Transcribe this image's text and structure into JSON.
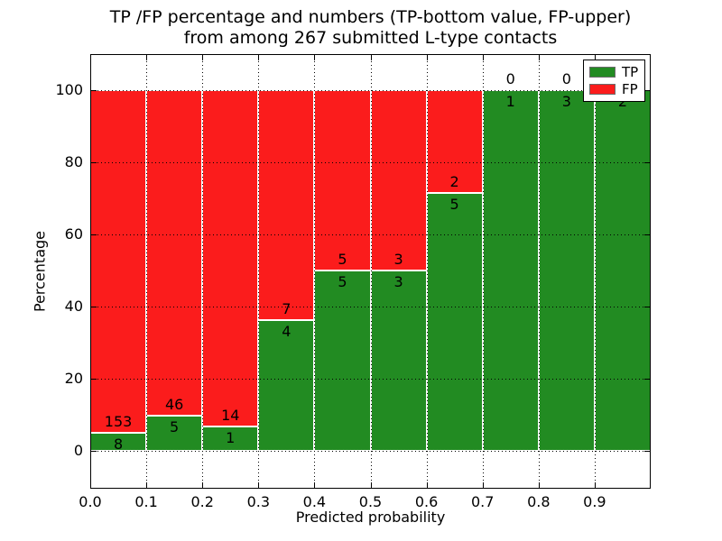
{
  "figure": {
    "title_line1": "TP /FP percentage and numbers (TP-bottom value, FP-upper)",
    "title_line2": "from among 267 submitted L-type contacts"
  },
  "chart_data": {
    "type": "bar",
    "stacked": true,
    "title": "TP /FP percentage and numbers (TP-bottom value, FP-upper) from among 267 submitted L-type contacts",
    "xlabel": "Predicted probability",
    "ylabel": "Percentage",
    "xlim": [
      0.0,
      1.0
    ],
    "ylim": [
      -10.5,
      110
    ],
    "grid": "dotted",
    "x_tick_labels": [
      "0.0",
      "0.1",
      "0.2",
      "0.3",
      "0.4",
      "0.5",
      "0.6",
      "0.7",
      "0.8",
      "0.9"
    ],
    "x_tick_values": [
      0.0,
      0.1,
      0.2,
      0.3,
      0.4,
      0.5,
      0.6,
      0.7,
      0.8,
      0.9
    ],
    "y_tick_labels": [
      "0",
      "20",
      "40",
      "60",
      "80",
      "100"
    ],
    "y_tick_values": [
      0,
      20,
      40,
      60,
      80,
      100
    ],
    "colors": {
      "tp": "#228b22",
      "fp": "#fb1c1c"
    },
    "legend": {
      "position": "upper right",
      "entries": [
        {
          "label": "TP",
          "color": "#228b22"
        },
        {
          "label": "FP",
          "color": "#fb1c1c"
        }
      ]
    },
    "bins": [
      {
        "range": [
          0.0,
          0.1
        ],
        "tp": 8,
        "fp": 153
      },
      {
        "range": [
          0.1,
          0.2
        ],
        "tp": 5,
        "fp": 46
      },
      {
        "range": [
          0.2,
          0.3
        ],
        "tp": 1,
        "fp": 14
      },
      {
        "range": [
          0.3,
          0.4
        ],
        "tp": 4,
        "fp": 7
      },
      {
        "range": [
          0.4,
          0.5
        ],
        "tp": 5,
        "fp": 5
      },
      {
        "range": [
          0.5,
          0.6
        ],
        "tp": 3,
        "fp": 3
      },
      {
        "range": [
          0.6,
          0.7
        ],
        "tp": 5,
        "fp": 2
      },
      {
        "range": [
          0.7,
          0.8
        ],
        "tp": 1,
        "fp": 0
      },
      {
        "range": [
          0.8,
          0.9
        ],
        "tp": 3,
        "fp": 0
      },
      {
        "range": [
          0.9,
          1.0
        ],
        "tp": 2,
        "fp": 0
      }
    ]
  }
}
